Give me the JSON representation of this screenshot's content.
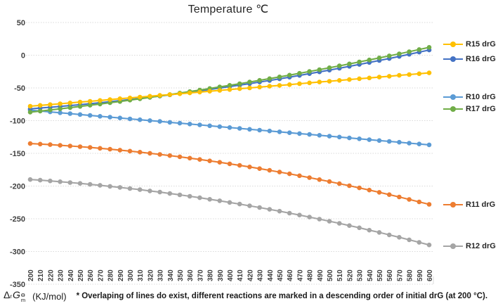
{
  "chart_data": {
    "type": "line",
    "title": "Temperature ℃",
    "xlabel": "Temperature ℃",
    "ylabel": "ΔrGϴm (KJ/mol)",
    "ylim": [
      -350,
      50
    ],
    "xlim": [
      200,
      600
    ],
    "grid": "horizontal-dotted",
    "legend_position": "right",
    "y_ticks": [
      50,
      0,
      -50,
      -100,
      -150,
      -200,
      -250,
      -300,
      -350
    ],
    "x": [
      200,
      210,
      220,
      230,
      240,
      250,
      260,
      270,
      280,
      290,
      300,
      310,
      320,
      330,
      340,
      350,
      360,
      370,
      380,
      390,
      400,
      410,
      420,
      430,
      440,
      450,
      460,
      470,
      480,
      490,
      500,
      510,
      520,
      530,
      540,
      550,
      560,
      570,
      580,
      590,
      600
    ],
    "series": [
      {
        "name": "R15 drG",
        "color": "#FFC000",
        "values": [
          -78,
          -76.7,
          -75.5,
          -74.2,
          -72.9,
          -71.6,
          -70.4,
          -69.1,
          -67.8,
          -66.5,
          -65.3,
          -64,
          -62.7,
          -61.4,
          -60.2,
          -58.9,
          -57.6,
          -56.3,
          -55.1,
          -53.8,
          -52.5,
          -51.2,
          -50,
          -48.7,
          -47.4,
          -46.1,
          -44.9,
          -43.6,
          -42.3,
          -41,
          -39.8,
          -38.5,
          -37.2,
          -35.9,
          -34.7,
          -33.4,
          -32.1,
          -30.8,
          -29.6,
          -28.3,
          -27
        ]
      },
      {
        "name": "R16 drG",
        "color": "#4472C4",
        "values": [
          -82,
          -80.8,
          -79.6,
          -78.3,
          -77,
          -75.6,
          -74.1,
          -72.6,
          -71,
          -69.4,
          -67.8,
          -66,
          -64.2,
          -62.4,
          -60.5,
          -58.6,
          -56.6,
          -54.5,
          -52.4,
          -50.2,
          -48,
          -45.7,
          -43.4,
          -41,
          -38.6,
          -36.1,
          -33.5,
          -30.9,
          -28.2,
          -25.5,
          -22.8,
          -19.9,
          -17,
          -14.1,
          -11.1,
          -8.1,
          -5,
          -1.8,
          1.4,
          4.7,
          8
        ]
      },
      {
        "name": "R10 drG",
        "color": "#5B9BD5",
        "values": [
          -84,
          -85.3,
          -86.7,
          -88,
          -89.3,
          -90.6,
          -92,
          -93.3,
          -94.6,
          -95.9,
          -97.3,
          -98.6,
          -99.9,
          -101.2,
          -102.6,
          -103.9,
          -105.2,
          -106.5,
          -107.9,
          -109.2,
          -110.5,
          -111.8,
          -113.2,
          -114.5,
          -115.8,
          -117.1,
          -118.5,
          -119.8,
          -121.1,
          -122.4,
          -123.8,
          -125.1,
          -126.4,
          -127.7,
          -129.1,
          -130.4,
          -131.7,
          -133,
          -134.4,
          -135.7,
          -137
        ]
      },
      {
        "name": "R17 drG",
        "color": "#70AD47",
        "values": [
          -87,
          -85.4,
          -83.7,
          -81.9,
          -80.2,
          -78.3,
          -76.5,
          -74.6,
          -72.6,
          -70.7,
          -68.6,
          -66.6,
          -64.4,
          -62.3,
          -60.1,
          -57.8,
          -55.6,
          -53.2,
          -50.9,
          -48.5,
          -46,
          -43.5,
          -41,
          -38.4,
          -35.8,
          -33.1,
          -30.4,
          -27.6,
          -24.8,
          -22,
          -19.1,
          -16.2,
          -13.2,
          -10.2,
          -7.2,
          -4.1,
          -1,
          2.2,
          5.4,
          8.7,
          12
        ]
      },
      {
        "name": "R11 drG",
        "color": "#ED7D31",
        "values": [
          -135,
          -135.8,
          -136.7,
          -137.7,
          -138.7,
          -139.8,
          -141,
          -142.3,
          -143.7,
          -145.1,
          -146.6,
          -148.2,
          -149.9,
          -151.6,
          -153.4,
          -155.3,
          -157.3,
          -159.4,
          -161.5,
          -163.7,
          -166,
          -168.4,
          -170.8,
          -173.3,
          -175.9,
          -178.6,
          -181.3,
          -184.2,
          -187.1,
          -190.1,
          -193.1,
          -196.3,
          -199.5,
          -202.8,
          -206.1,
          -209.6,
          -213.1,
          -216.7,
          -220.4,
          -224.2,
          -228
        ]
      },
      {
        "name": "R12 drG",
        "color": "#A5A5A5",
        "values": [
          -190,
          -191,
          -192.2,
          -193.3,
          -194.6,
          -195.9,
          -197.4,
          -198.8,
          -200.4,
          -202,
          -203.8,
          -205.5,
          -207.4,
          -209.3,
          -211.4,
          -213.4,
          -215.6,
          -217.8,
          -220.2,
          -222.5,
          -225,
          -227.5,
          -230.2,
          -232.8,
          -235.6,
          -238.4,
          -241.4,
          -244.3,
          -247.4,
          -250.5,
          -253.8,
          -257,
          -260.4,
          -263.8,
          -267.4,
          -270.9,
          -274.6,
          -278.3,
          -282.2,
          -286,
          -290
        ]
      }
    ],
    "annotation": "* Overlaping of lines do exist, different reactions are marked in a descending order of initial drG (at 200 °C)."
  },
  "footer": {
    "formula": {
      "delta": "Δ",
      "sub_r": "r",
      "symbol": "G",
      "sup": "ϴ",
      "sub_m": "m"
    },
    "unit": "(KJ/mol)"
  },
  "colors": {
    "grid": "#d9d9d9",
    "tick_text": "#404040",
    "title_text": "#262626"
  }
}
